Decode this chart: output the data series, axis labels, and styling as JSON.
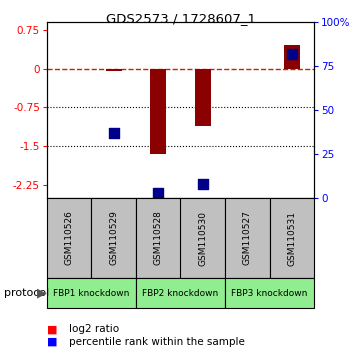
{
  "title": "GDS2573 / 1728607_1",
  "samples": [
    "GSM110526",
    "GSM110529",
    "GSM110528",
    "GSM110530",
    "GSM110527",
    "GSM110531"
  ],
  "log2_ratio": [
    0.0,
    -0.05,
    -1.65,
    -1.1,
    0.0,
    0.45
  ],
  "percentile_rank": [
    null,
    37,
    3,
    8,
    null,
    82
  ],
  "ylim_left": [
    -2.5,
    0.9
  ],
  "ylim_right": [
    0,
    100
  ],
  "yticks_left": [
    0.75,
    0,
    -0.75,
    -1.5,
    -2.25
  ],
  "yticks_right": [
    100,
    75,
    50,
    25,
    0
  ],
  "hlines_dotted": [
    -0.75,
    -1.5
  ],
  "hline_dashed": 0,
  "bar_color": "#8B0000",
  "dot_color": "#00008B",
  "proto_groups": [
    [
      0,
      1,
      "FBP1 knockdown"
    ],
    [
      2,
      3,
      "FBP2 knockdown"
    ],
    [
      4,
      5,
      "FBP3 knockdown"
    ]
  ],
  "proto_color": "#90EE90",
  "sample_box_color": "#C0C0C0",
  "legend_red": "log2 ratio",
  "legend_blue": "percentile rank within the sample",
  "bar_width": 0.35,
  "dot_size": 50
}
